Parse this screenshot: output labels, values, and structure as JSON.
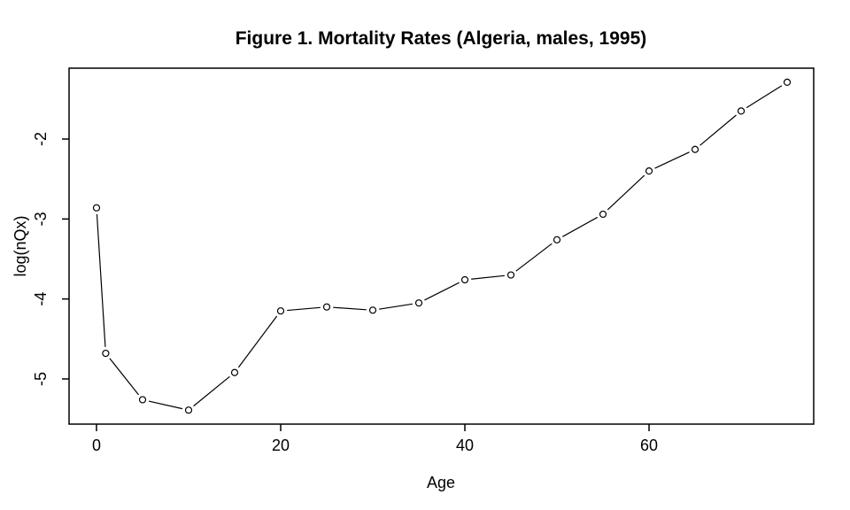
{
  "figure": {
    "background": "#ffffff",
    "foreground": "#000000"
  },
  "chart_data": {
    "type": "line",
    "title": "Figure 1. Mortality Rates (Algeria, males, 1995)",
    "xlabel": "Age",
    "ylabel": "log(nQx)",
    "x": [
      0,
      1,
      5,
      10,
      15,
      20,
      25,
      30,
      35,
      40,
      45,
      50,
      55,
      60,
      65,
      70,
      75
    ],
    "y": [
      -2.86,
      -4.68,
      -5.26,
      -5.39,
      -4.92,
      -4.15,
      -4.1,
      -4.14,
      -4.05,
      -3.76,
      -3.7,
      -3.26,
      -2.94,
      -2.4,
      -2.13,
      -1.65,
      -1.29
    ],
    "xticks": [
      0,
      20,
      40,
      60
    ],
    "yticks": [
      -2,
      -3,
      -4,
      -5
    ],
    "xlim": [
      -2.98,
      77.88
    ],
    "ylim": [
      -5.565,
      -1.114
    ],
    "marker": "open-circle",
    "line_style": "segments-with-point-gaps",
    "line_color": "#000000",
    "marker_stroke_color": "#000000",
    "marker_fill_color": "#ffffff",
    "grid": false
  }
}
